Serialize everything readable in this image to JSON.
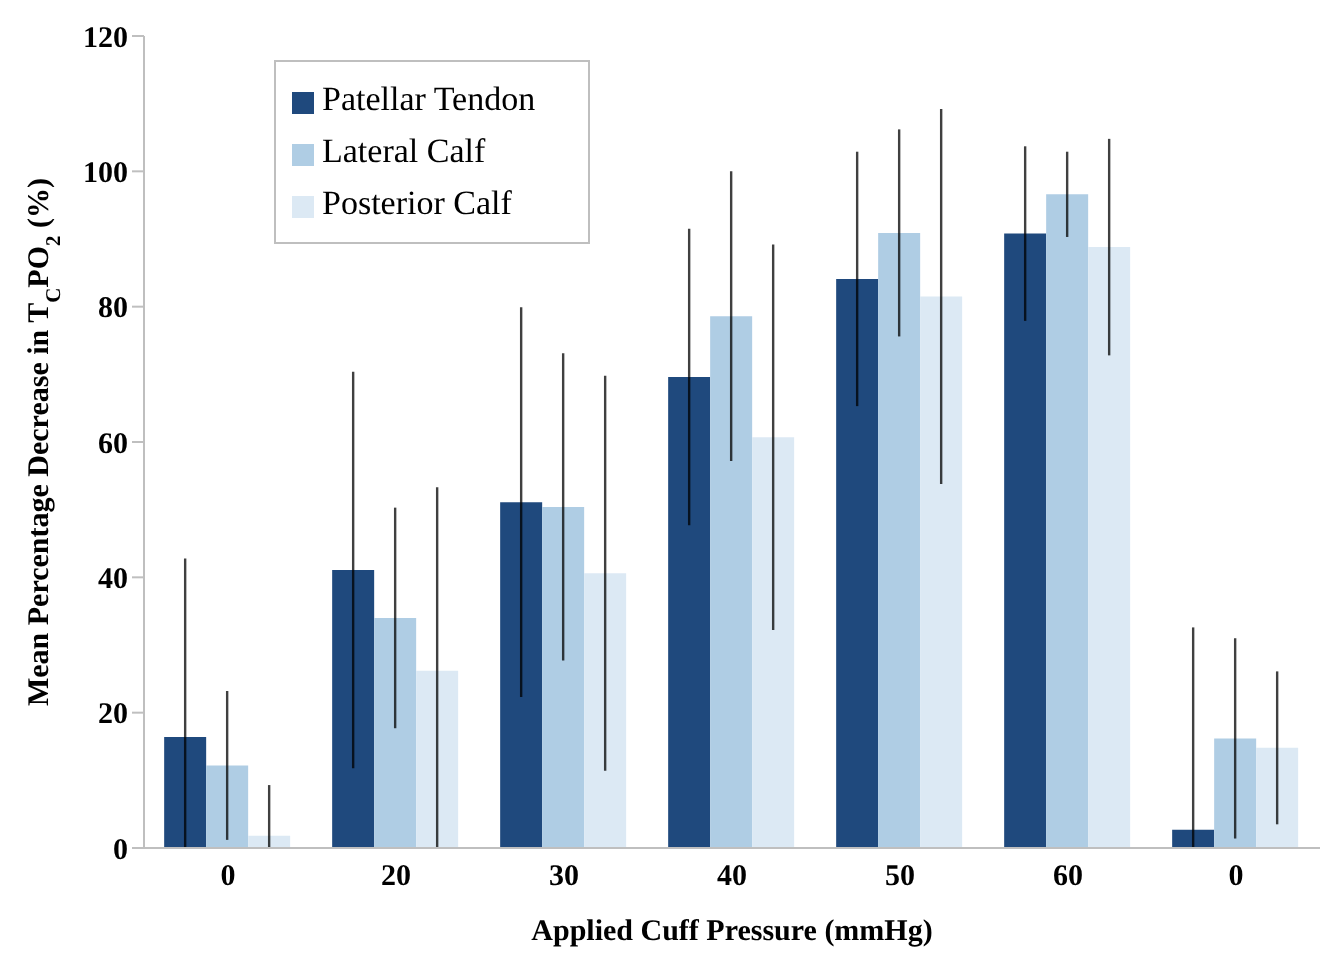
{
  "chart_data": {
    "type": "bar",
    "xlabel": "Applied Cuff Pressure (mmHg)",
    "ylabel": "Mean Percentage Decrease in T$_{C}$PO$_{2}$ (%)",
    "categories": [
      "0",
      "20",
      "30",
      "40",
      "50",
      "60",
      "0"
    ],
    "series": [
      {
        "name": "Patellar Tendon",
        "color": "#1f497d",
        "values": [
          16.4,
          41.1,
          51.1,
          69.6,
          84.1,
          90.8,
          2.7
        ],
        "errors": [
          [
            0,
            42.8
          ],
          29.3,
          28.8,
          21.9,
          18.8,
          12.9,
          [
            0,
            32.6
          ]
        ]
      },
      {
        "name": "Lateral Calf",
        "color": "#afcde4",
        "values": [
          12.2,
          34.0,
          50.4,
          78.6,
          90.9,
          96.6,
          16.2
        ],
        "errors": [
          11,
          16.3,
          22.7,
          21.4,
          15.3,
          6.3,
          14.8
        ]
      },
      {
        "name": "Posterior Calf",
        "color": "#dce9f4",
        "values": [
          1.8,
          26.2,
          40.6,
          60.7,
          81.5,
          88.8,
          14.8
        ],
        "errors": [
          [
            0,
            9.3
          ],
          [
            0,
            53.3
          ],
          29.2,
          28.5,
          27.7,
          16,
          11.3
        ]
      }
    ],
    "ylim": [
      0,
      120
    ],
    "yticks": [
      0,
      20,
      40,
      60,
      80,
      100,
      120
    ],
    "grid": false,
    "legend": "top left"
  }
}
